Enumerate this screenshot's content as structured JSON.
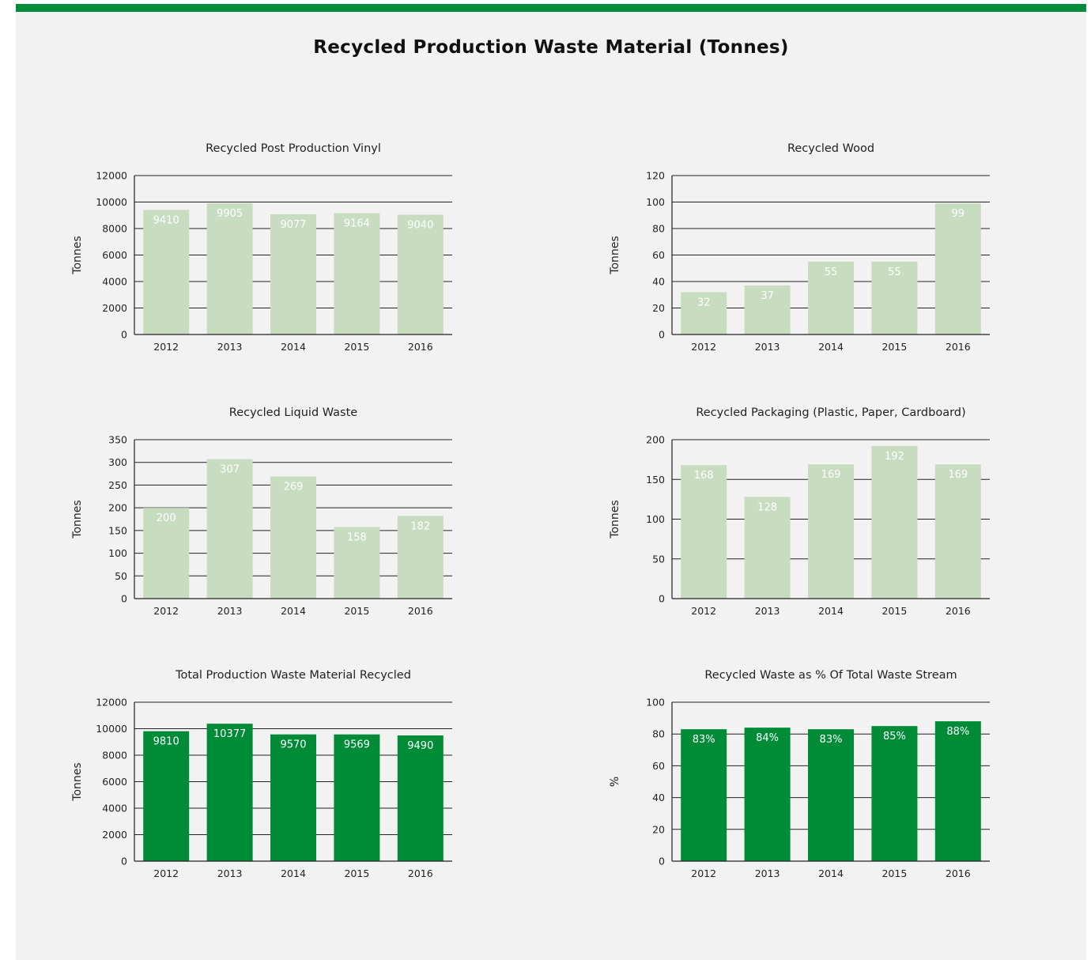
{
  "page": {
    "title": "Recycled Production Waste Material (Tonnes)",
    "colors": {
      "accent": "#008c3a",
      "light_bar": "#c8dcc0",
      "dark_bar": "#008c37",
      "panel": "#f2f2f2"
    }
  },
  "chart_data": [
    {
      "type": "bar",
      "title": "Recycled Post Production Vinyl",
      "xlabel": "",
      "ylabel": "Tonnes",
      "categories": [
        "2012",
        "2013",
        "2014",
        "2015",
        "2016"
      ],
      "values": [
        9410,
        9905,
        9077,
        9164,
        9040
      ],
      "value_labels": [
        "9410",
        "9905",
        "9077",
        "9164",
        "9040"
      ],
      "ylim": [
        0,
        12000
      ],
      "yticks": [
        "0",
        "2000",
        "4000",
        "6000",
        "8000",
        "10000",
        "12000"
      ],
      "bar_color": "#c8dcc0",
      "grid": true
    },
    {
      "type": "bar",
      "title": "Recycled Wood",
      "xlabel": "",
      "ylabel": "Tonnes",
      "categories": [
        "2012",
        "2013",
        "2014",
        "2015",
        "2016"
      ],
      "values": [
        32,
        37,
        55,
        55,
        99
      ],
      "value_labels": [
        "32",
        "37",
        "55",
        "55",
        "99"
      ],
      "ylim": [
        0,
        120
      ],
      "yticks": [
        "0",
        "20",
        "40",
        "60",
        "80",
        "100",
        "120"
      ],
      "bar_color": "#c8dcc0",
      "grid": true
    },
    {
      "type": "bar",
      "title": "Recycled Liquid Waste",
      "xlabel": "",
      "ylabel": "Tonnes",
      "categories": [
        "2012",
        "2013",
        "2014",
        "2015",
        "2016"
      ],
      "values": [
        200,
        307,
        269,
        158,
        182
      ],
      "value_labels": [
        "200",
        "307",
        "269",
        "158",
        "182"
      ],
      "ylim": [
        0,
        350
      ],
      "yticks": [
        "0",
        "50",
        "100",
        "150",
        "200",
        "250",
        "300",
        "350"
      ],
      "bar_color": "#c8dcc0",
      "grid": true
    },
    {
      "type": "bar",
      "title": "Recycled Packaging (Plastic, Paper, Cardboard)",
      "xlabel": "",
      "ylabel": "Tonnes",
      "categories": [
        "2012",
        "2013",
        "2014",
        "2015",
        "2016"
      ],
      "values": [
        168,
        128,
        169,
        192,
        169
      ],
      "value_labels": [
        "168",
        "128",
        "169",
        "192",
        "169"
      ],
      "ylim": [
        0,
        200
      ],
      "yticks": [
        "0",
        "50",
        "100",
        "150",
        "200"
      ],
      "bar_color": "#c8dcc0",
      "grid": true
    },
    {
      "type": "bar",
      "title": "Total Production Waste Material Recycled",
      "xlabel": "",
      "ylabel": "Tonnes",
      "categories": [
        "2012",
        "2013",
        "2014",
        "2015",
        "2016"
      ],
      "values": [
        9810,
        10377,
        9570,
        9569,
        9490
      ],
      "value_labels": [
        "9810",
        "10377",
        "9570",
        "9569",
        "9490"
      ],
      "ylim": [
        0,
        12000
      ],
      "yticks": [
        "0",
        "2000",
        "4000",
        "6000",
        "8000",
        "10000",
        "12000"
      ],
      "bar_color": "#008c37",
      "grid": true
    },
    {
      "type": "bar",
      "title": "Recycled Waste as % Of Total Waste Stream",
      "xlabel": "",
      "ylabel": "%",
      "categories": [
        "2012",
        "2013",
        "2014",
        "2015",
        "2016"
      ],
      "values": [
        83,
        84,
        83,
        85,
        88
      ],
      "value_labels": [
        "83%",
        "84%",
        "83%",
        "85%",
        "88%"
      ],
      "ylim": [
        0,
        100
      ],
      "yticks": [
        "0",
        "20",
        "40",
        "60",
        "80",
        "100"
      ],
      "bar_color": "#008c37",
      "grid": true
    }
  ]
}
